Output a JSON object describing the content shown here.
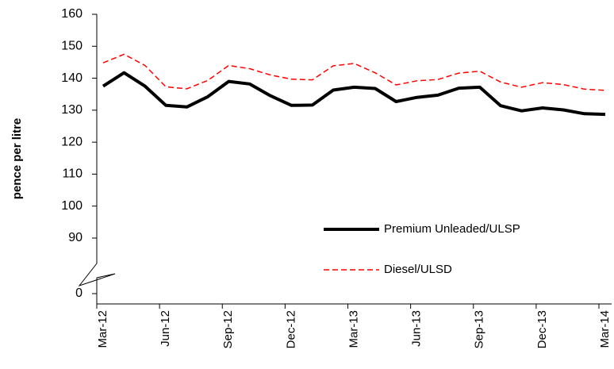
{
  "chart_data": {
    "type": "line",
    "y_label": "pence per litre",
    "categories": [
      "Mar-12",
      null,
      null,
      "Jun-12",
      null,
      null,
      "Sep-12",
      null,
      null,
      "Dec-12",
      null,
      null,
      "Mar-13",
      null,
      null,
      "Jun-13",
      null,
      null,
      "Sep-13",
      null,
      null,
      "Dec-13",
      null,
      null,
      "Mar-14"
    ],
    "series": [
      {
        "name": "Premium Unleaded/ULSP",
        "color": "#000000",
        "line_style": "solid",
        "values": [
          137.5,
          141.7,
          137.5,
          131.5,
          131,
          134.2,
          139,
          138.2,
          134.5,
          131.5,
          131.6,
          136.3,
          137.2,
          136.8,
          132.7,
          134,
          134.7,
          136.9,
          137.2,
          131.4,
          129.8,
          130.7,
          130.1,
          128.9,
          128.7
        ]
      },
      {
        "name": "Diesel/ULSD",
        "color": "#ff0000",
        "line_style": "dashed",
        "values": [
          144.8,
          147.5,
          144,
          137.3,
          136.7,
          139.3,
          144,
          143,
          141,
          139.7,
          139.5,
          143.9,
          144.6,
          141.7,
          137.9,
          139.2,
          139.6,
          141.6,
          142.2,
          138.8,
          137.2,
          138.6,
          138,
          136.6,
          136.2
        ]
      }
    ],
    "ylim": [
      0,
      160
    ],
    "yticks": [
      0,
      90,
      100,
      110,
      120,
      130,
      140,
      150,
      160
    ],
    "axis_break": true,
    "grid": false
  }
}
